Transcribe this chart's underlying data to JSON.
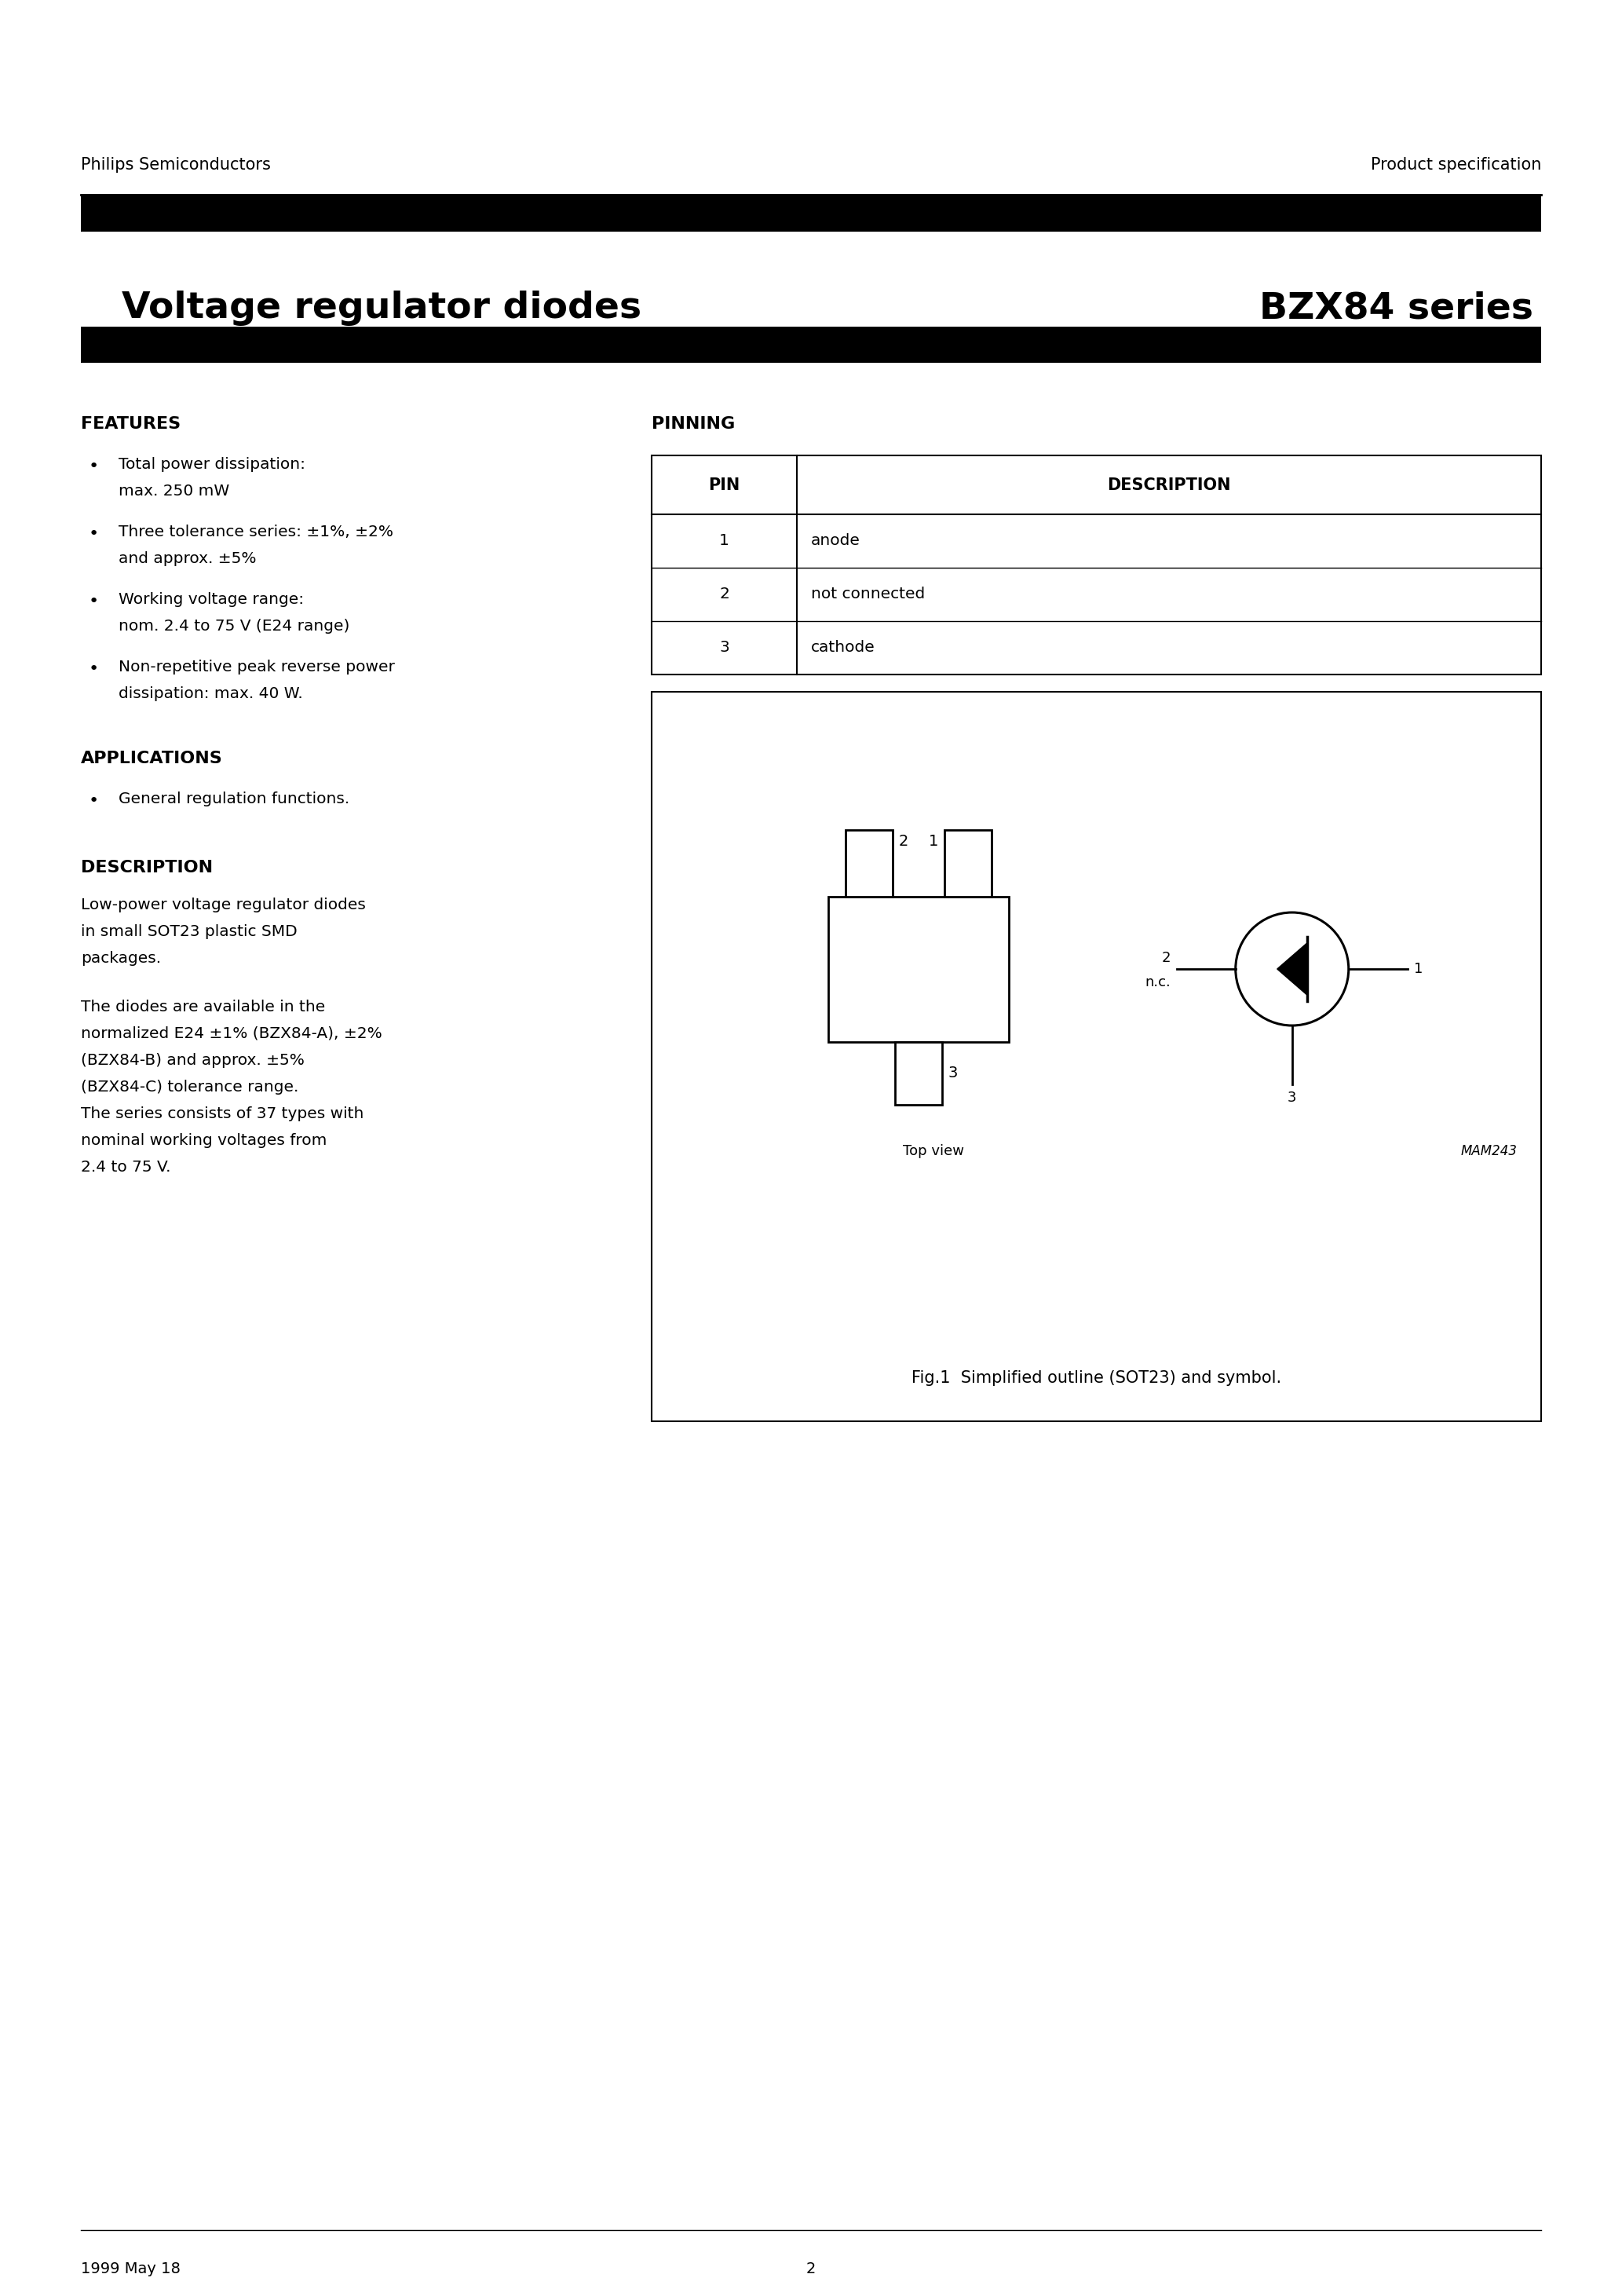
{
  "header_left": "Philips Semiconductors",
  "header_right": "Product specification",
  "page_title_left": "Voltage regulator diodes",
  "page_title_right": "BZX84 series",
  "footer_left": "1999 May 18",
  "footer_center": "2",
  "features_title": "FEATURES",
  "features_bullets": [
    [
      "Total power dissipation:",
      "max. 250 mW"
    ],
    [
      "Three tolerance series: ±1%, ±2%",
      "and approx. ±5%"
    ],
    [
      "Working voltage range:",
      "nom. 2.4 to 75 V (E24 range)"
    ],
    [
      "Non-repetitive peak reverse power",
      "dissipation: max. 40 W."
    ]
  ],
  "applications_title": "APPLICATIONS",
  "applications_bullets": [
    "General regulation functions."
  ],
  "description_title": "DESCRIPTION",
  "desc_para1": [
    "Low-power voltage regulator diodes",
    "in small SOT23 plastic SMD",
    "packages."
  ],
  "desc_para2": [
    "The diodes are available in the",
    "normalized E24 ±1% (BZX84-A), ±2%",
    "(BZX84-B) and approx. ±5%",
    "(BZX84-C) tolerance range.",
    "The series consists of 37 types with",
    "nominal working voltages from",
    "2.4 to 75 V."
  ],
  "pinning_title": "PINNING",
  "pin_headers": [
    "PIN",
    "DESCRIPTION"
  ],
  "pin_rows": [
    [
      "1",
      "anode"
    ],
    [
      "2",
      "not connected"
    ],
    [
      "3",
      "cathode"
    ]
  ],
  "top_view_label": "Top view",
  "mam_label": "MAM243",
  "fig_caption": "Fig.1  Simplified outline (SOT23) and symbol.",
  "bg_color": "#ffffff",
  "text_color": "#000000"
}
